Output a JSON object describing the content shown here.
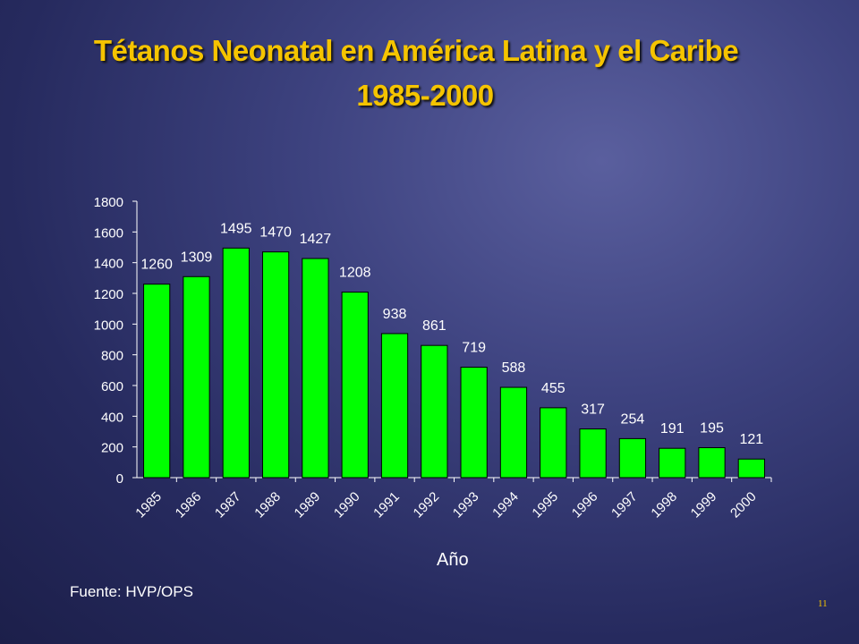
{
  "slide": {
    "title_line1": "Tétanos Neonatal en América Latina y el Caribe",
    "title_line2": "1985-2000",
    "source": "Fuente:  HVP/OPS",
    "page_number": "11"
  },
  "chart_data": {
    "type": "bar",
    "title": "",
    "xlabel": "Año",
    "ylabel": "",
    "categories": [
      "1985",
      "1986",
      "1987",
      "1988",
      "1989",
      "1990",
      "1991",
      "1992",
      "1993",
      "1994",
      "1995",
      "1996",
      "1997",
      "1998",
      "1999",
      "2000"
    ],
    "values": [
      1260,
      1309,
      1495,
      1470,
      1427,
      1208,
      938,
      861,
      719,
      588,
      455,
      317,
      254,
      191,
      195,
      121
    ],
    "ylim": [
      0,
      1800
    ],
    "yticks": [
      0,
      200,
      400,
      600,
      800,
      1000,
      1200,
      1400,
      1600,
      1800
    ],
    "bar_color": "#00ff00",
    "grid": false,
    "legend": "none"
  }
}
